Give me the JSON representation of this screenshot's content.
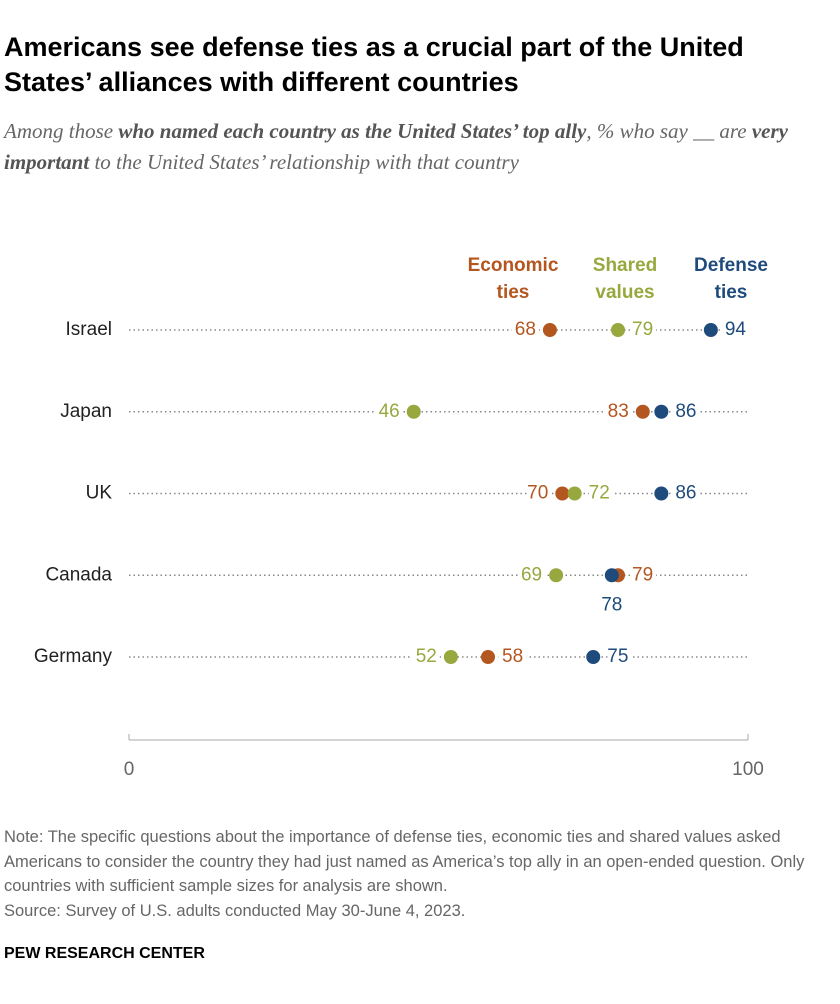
{
  "chart_data": {
    "type": "dot",
    "title": "Americans see defense ties as a crucial part of the United States’ alliances with different countries",
    "subtitle": [
      "Among those ",
      "who named each country as the United States’ top ally",
      ", % who say __ are ",
      "very important",
      " to the United States’ relationship with that country"
    ],
    "categories": [
      "Israel",
      "Japan",
      "UK",
      "Canada",
      "Germany"
    ],
    "series": [
      {
        "name": "Economic ties",
        "color": "#b4561f",
        "values": [
          68,
          83,
          70,
          79,
          58
        ]
      },
      {
        "name": "Shared values",
        "color": "#98a83f",
        "values": [
          79,
          46,
          72,
          69,
          52
        ]
      },
      {
        "name": "Defense ties",
        "color": "#1f4b7c",
        "values": [
          94,
          86,
          86,
          78,
          75
        ]
      }
    ],
    "xlim": [
      0,
      100
    ],
    "xticks": [
      0,
      100
    ],
    "note": "Note: The specific questions about the importance of defense ties, economic ties and shared values asked Americans to consider the country they had just named as America’s top ally in an open-ended question. Only countries with sufficient sample sizes for analysis are shown.",
    "source": "Source: Survey of U.S. adults conducted May 30-June 4, 2023.",
    "brand": "PEW RESEARCH CENTER"
  }
}
